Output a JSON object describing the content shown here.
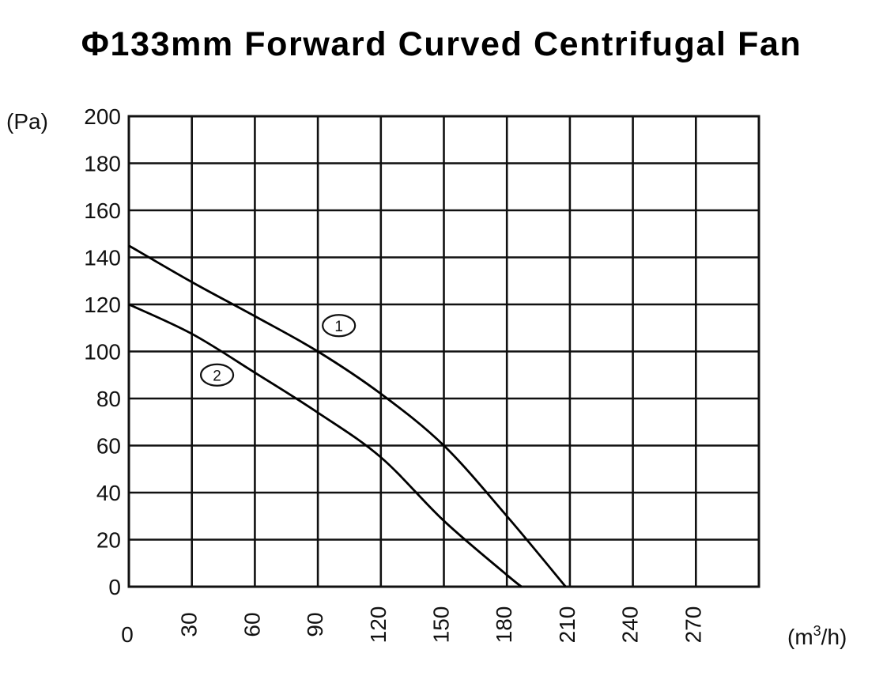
{
  "title": "Φ133mm Forward Curved Centrifugal Fan",
  "chart_data": {
    "type": "line",
    "title": "Φ133mm Forward Curved Centrifugal Fan",
    "xlabel": "(m³/h)",
    "ylabel": "(Pa)",
    "xlim": [
      0,
      300
    ],
    "ylim": [
      0,
      200
    ],
    "grid": true,
    "x_ticks": [
      0,
      30,
      60,
      90,
      120,
      150,
      180,
      210,
      240,
      270
    ],
    "y_ticks": [
      0,
      20,
      40,
      60,
      80,
      100,
      120,
      140,
      160,
      180,
      200
    ],
    "legend_position": "inline circled labels",
    "series": [
      {
        "name": "1",
        "label_position": [
          100,
          111
        ],
        "x": [
          0,
          30,
          60,
          90,
          120,
          150,
          180,
          208
        ],
        "y": [
          145,
          129.5,
          115,
          100,
          82,
          60,
          30,
          0
        ]
      },
      {
        "name": "2",
        "label_position": [
          42,
          90
        ],
        "x": [
          0,
          30,
          60,
          90,
          120,
          150,
          180,
          187
        ],
        "y": [
          120,
          107.5,
          91,
          74,
          55,
          28,
          5,
          0
        ]
      }
    ]
  }
}
